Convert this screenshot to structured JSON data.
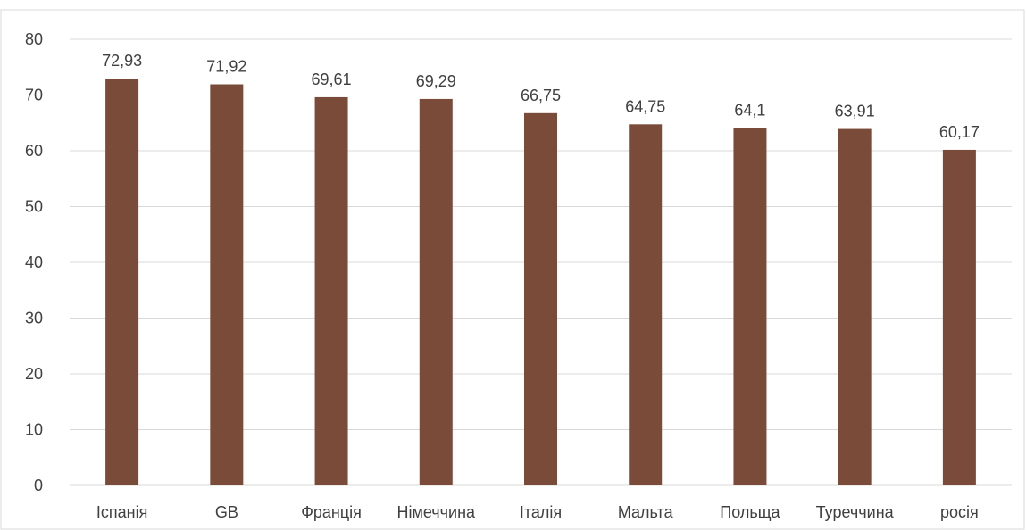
{
  "chart_data": {
    "type": "bar",
    "title": "",
    "xlabel": "",
    "ylabel": "",
    "categories": [
      "Іспанія",
      "GB",
      "Франція",
      "Німеччина",
      "Італія",
      "Мальта",
      "Польща",
      "Туреччина",
      "росія"
    ],
    "values": [
      72.93,
      71.92,
      69.61,
      69.29,
      66.75,
      64.75,
      64.1,
      63.91,
      60.17
    ],
    "data_labels": [
      "72,93",
      "71,92",
      "69,61",
      "69,29",
      "66,75",
      "64,75",
      "64,1",
      "63,91",
      "60,17"
    ],
    "ylim": [
      0,
      80
    ],
    "yticks": [
      0,
      10,
      20,
      30,
      40,
      50,
      60,
      70,
      80
    ],
    "grid": true,
    "legend": "none",
    "colors": {
      "bar": "#7b4b3a",
      "grid": "#d9d9d9",
      "text": "#404040",
      "border": "#d9d9d9"
    }
  }
}
